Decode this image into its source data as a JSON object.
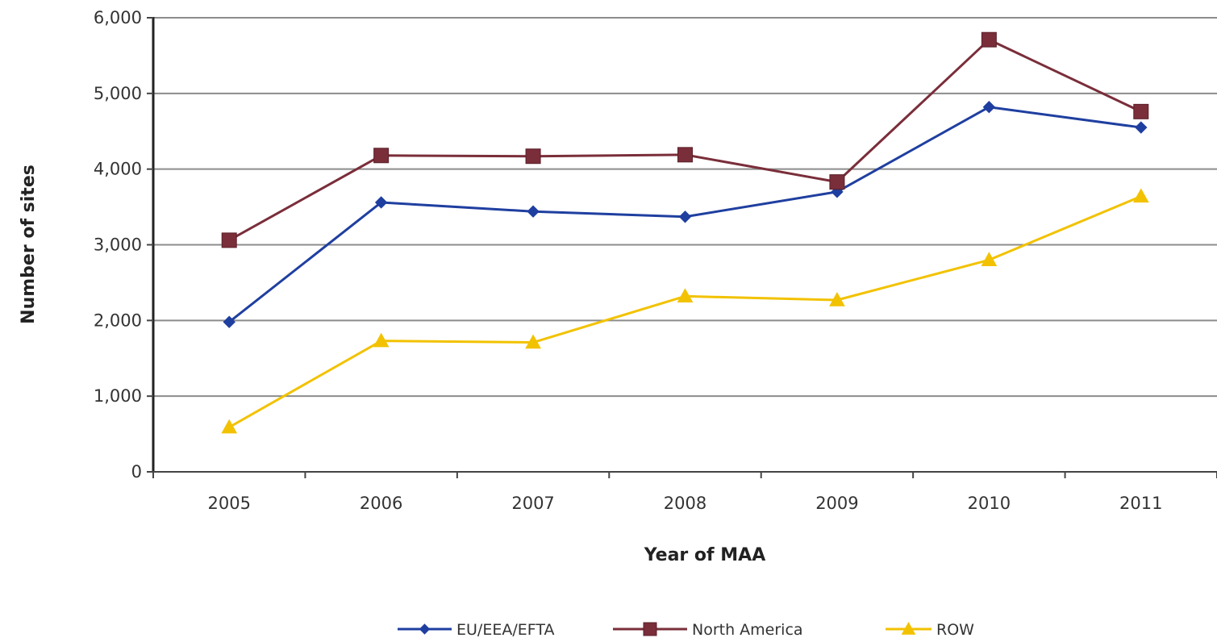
{
  "chart_data": {
    "type": "line",
    "title": "",
    "xlabel": "Year of MAA",
    "ylabel": "Number of sites",
    "categories": [
      "2005",
      "2006",
      "2007",
      "2008",
      "2009",
      "2010",
      "2011"
    ],
    "ylim": [
      0,
      6000
    ],
    "yticks": [
      0,
      1000,
      2000,
      3000,
      4000,
      5000,
      6000
    ],
    "ytick_labels": [
      "0",
      "1,000",
      "2,000",
      "3,000",
      "4,000",
      "5,000",
      "6,000"
    ],
    "grid": true,
    "legend_position": "bottom",
    "series": [
      {
        "name": "EU/EEA/EFTA",
        "marker": "diamond",
        "color": "#1f3fa0",
        "values": [
          1980,
          3560,
          3440,
          3370,
          3700,
          4820,
          4550
        ]
      },
      {
        "name": "North America",
        "marker": "square",
        "color": "#7a2e3a",
        "values": [
          3060,
          4180,
          4170,
          4190,
          3830,
          5710,
          4760
        ]
      },
      {
        "name": "ROW",
        "marker": "triangle",
        "color": "#f2c200",
        "values": [
          590,
          1730,
          1710,
          2320,
          2270,
          2800,
          3640
        ]
      }
    ]
  }
}
